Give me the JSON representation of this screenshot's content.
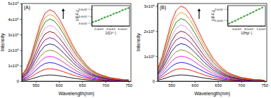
{
  "chart_data": [
    {
      "type": "line",
      "title": "(A)",
      "x_label": "Wavelength(nm)",
      "y_label": "Intensity",
      "x": [
        520,
        530,
        540,
        550,
        560,
        570,
        580,
        590,
        600,
        610,
        620,
        630,
        640,
        650,
        660,
        670,
        680,
        690,
        700,
        710,
        720,
        730,
        740,
        750
      ],
      "xlim": [
        520,
        755
      ],
      "xticks": [
        550,
        600,
        650,
        700,
        750
      ],
      "ylim": [
        0,
        500000
      ],
      "yticks": [
        0,
        {
          "value": 100000,
          "label": "1x10⁵"
        },
        {
          "value": 200000,
          "label": "2x10⁵"
        },
        {
          "value": 300000,
          "label": "3x10⁵"
        },
        {
          "value": 400000,
          "label": "4x10⁵"
        },
        {
          "value": 500000,
          "label": "5x10⁵"
        }
      ],
      "series": [
        {
          "color": "#000000",
          "values": [
            3200,
            7200,
            14000,
            23200,
            32000,
            38000,
            40000,
            38800,
            35200,
            30400,
            25200,
            20000,
            15600,
            12000,
            8800,
            6400,
            4800,
            3600,
            2800,
            2000,
            1600,
            1200,
            800,
            800
          ]
        },
        {
          "color": "#ff0000",
          "values": [
            6400,
            14400,
            28000,
            46400,
            64000,
            76000,
            80000,
            77600,
            70400,
            60800,
            50400,
            40000,
            31200,
            24000,
            17600,
            12800,
            9600,
            7200,
            5600,
            4000,
            3200,
            2400,
            1600,
            1600
          ]
        },
        {
          "color": "#0000ff",
          "values": [
            9600,
            21600,
            42000,
            69600,
            96000,
            114000,
            120000,
            116400,
            105600,
            91200,
            75600,
            60000,
            46800,
            36000,
            26400,
            19200,
            14400,
            10800,
            8400,
            6000,
            4800,
            3600,
            2400,
            2400
          ]
        },
        {
          "color": "#ff00ff",
          "values": [
            12800,
            28800,
            56000,
            92800,
            128000,
            152000,
            160000,
            155200,
            140800,
            121600,
            100800,
            80000,
            62400,
            48000,
            35200,
            25600,
            19200,
            14400,
            11200,
            8000,
            6400,
            4800,
            3200,
            3200
          ]
        },
        {
          "color": "#808000",
          "values": [
            16000,
            36000,
            70000,
            116000,
            160000,
            190000,
            200000,
            194000,
            176000,
            152000,
            126000,
            100000,
            78000,
            60000,
            44000,
            32000,
            24000,
            18000,
            14000,
            10000,
            8000,
            6000,
            4000,
            4000
          ]
        },
        {
          "color": "#000080",
          "values": [
            19200,
            43200,
            84000,
            139200,
            192000,
            228000,
            240000,
            232800,
            211200,
            182400,
            151200,
            120000,
            93600,
            72000,
            52800,
            38400,
            28800,
            21600,
            16800,
            12000,
            9600,
            7200,
            4800,
            4800
          ]
        },
        {
          "color": "#800080",
          "values": [
            22400,
            50400,
            98000,
            162400,
            224000,
            266000,
            280000,
            271600,
            246400,
            212800,
            176400,
            140000,
            109200,
            84000,
            61600,
            44800,
            33600,
            25200,
            19600,
            14000,
            11200,
            8400,
            5600,
            5600
          ]
        },
        {
          "color": "#800000",
          "values": [
            25600,
            57600,
            112000,
            185600,
            256000,
            304000,
            320000,
            310400,
            281600,
            243200,
            201600,
            160000,
            124800,
            96000,
            70400,
            51200,
            38400,
            28800,
            22400,
            16000,
            12800,
            9600,
            6400,
            6400
          ]
        },
        {
          "color": "#ee82ee",
          "values": [
            28800,
            64800,
            126000,
            208800,
            288000,
            342000,
            360000,
            349200,
            316800,
            273600,
            226800,
            180000,
            140400,
            108000,
            79200,
            57600,
            43200,
            32400,
            25200,
            18000,
            14400,
            10800,
            7200,
            7200
          ]
        },
        {
          "color": "#008000",
          "values": [
            32000,
            72000,
            140000,
            232000,
            320000,
            380000,
            400000,
            388000,
            352000,
            304000,
            252000,
            200000,
            156000,
            120000,
            88000,
            64000,
            48000,
            36000,
            28000,
            20000,
            16000,
            12000,
            8000,
            8000
          ]
        },
        {
          "color": "#ff8c00",
          "values": [
            34400,
            77400,
            150500,
            249400,
            344000,
            408500,
            430000,
            417100,
            378400,
            326800,
            270900,
            215000,
            167700,
            129000,
            94600,
            68800,
            51600,
            38700,
            30100,
            21500,
            17200,
            12900,
            8600,
            8600
          ]
        },
        {
          "color": "#ff0000",
          "values": [
            36800,
            82800,
            161000,
            266800,
            368000,
            437000,
            460000,
            446200,
            404800,
            349600,
            289800,
            230000,
            179400,
            138000,
            101200,
            73600,
            55200,
            41400,
            32200,
            23000,
            18400,
            13800,
            9200,
            9200
          ]
        }
      ]
    },
    {
      "type": "scatter",
      "x_label": "1/[Cr³⁺]",
      "y_label": "1/(F-F₀)",
      "xlim": [
        80000,
        720000
      ],
      "xticks": [
        {
          "value": 200000,
          "label": "2.0x10⁵"
        },
        {
          "value": 400000,
          "label": "4.0x10⁵"
        },
        {
          "value": 600000,
          "label": "6.0x10⁵"
        }
      ],
      "ylim": [
        2e-06,
        1.05e-05
      ],
      "yticks": [
        {
          "value": 3e-06,
          "label": "3.0x10⁻⁶"
        },
        {
          "value": 6e-06,
          "label": "6.0x10⁻⁶"
        },
        {
          "value": 9e-06,
          "label": "9.0x10⁻⁶"
        }
      ],
      "series": [
        {
          "type": "scatter",
          "marker": "circle",
          "color": "#2ca02c",
          "x": [
            100000,
            150000,
            200000,
            250000,
            300000,
            350000,
            400000,
            450000,
            500000,
            550000,
            600000,
            650000,
            700000
          ],
          "values": [
            3.6e-06,
            4e-06,
            4.4e-06,
            5e-06,
            5.6e-06,
            6e-06,
            6.4e-06,
            7.1e-06,
            7.5e-06,
            7.9e-06,
            8.6e-06,
            9e-06,
            9.5e-06
          ]
        },
        {
          "type": "line",
          "color": "#2ca02c",
          "x": [
            100000,
            700000
          ],
          "values": [
            3.5e-06,
            9.5e-06
          ]
        }
      ]
    },
    {
      "type": "line",
      "title": "(B)",
      "x_label": "Wavelength(nm)",
      "y_label": "Intensity",
      "x": [
        520,
        530,
        540,
        550,
        560,
        570,
        580,
        590,
        600,
        610,
        620,
        630,
        640,
        650,
        660,
        670,
        680,
        690,
        700,
        710,
        720,
        730,
        740,
        750
      ],
      "xlim": [
        520,
        755
      ],
      "xticks": [
        550,
        600,
        650,
        700,
        750
      ],
      "ylim": [
        0,
        310000
      ],
      "yticks": [
        0,
        {
          "value": 100000,
          "label": "1x10⁵"
        },
        {
          "value": 200000,
          "label": "2x10⁵"
        },
        {
          "value": 300000,
          "label": "3x10⁵"
        }
      ],
      "series": [
        {
          "color": "#000000",
          "values": [
            4000,
            8250,
            14000,
            19750,
            23500,
            25000,
            24250,
            22250,
            19250,
            16000,
            12750,
            10000,
            7500,
            5750,
            4250,
            3000,
            2250,
            1750,
            1250,
            1000,
            750,
            500,
            500,
            250
          ]
        },
        {
          "color": "#ff0000",
          "values": [
            8000,
            16500,
            28000,
            39500,
            47000,
            50000,
            48500,
            44500,
            38500,
            32000,
            25500,
            20000,
            15000,
            11500,
            8500,
            6000,
            4500,
            3500,
            2500,
            2000,
            1500,
            1000,
            1000,
            500
          ]
        },
        {
          "color": "#0000ff",
          "values": [
            12000,
            24750,
            42000,
            59250,
            70500,
            75000,
            72750,
            66750,
            57750,
            48000,
            38250,
            30000,
            22500,
            17250,
            12750,
            9000,
            6750,
            5250,
            3750,
            3000,
            2250,
            1500,
            1500,
            750
          ]
        },
        {
          "color": "#ff00ff",
          "values": [
            16000,
            33000,
            56000,
            79000,
            94000,
            100000,
            97000,
            89000,
            77000,
            64000,
            51000,
            40000,
            30000,
            23000,
            17000,
            12000,
            9000,
            7000,
            5000,
            4000,
            3000,
            2000,
            2000,
            1000
          ]
        },
        {
          "color": "#808000",
          "values": [
            20000,
            41250,
            70000,
            98750,
            117500,
            125000,
            121250,
            111250,
            96250,
            80000,
            63750,
            50000,
            37500,
            28750,
            21250,
            15000,
            11250,
            8750,
            6250,
            5000,
            3750,
            2500,
            2500,
            1250
          ]
        },
        {
          "color": "#000080",
          "values": [
            24000,
            49500,
            84000,
            118500,
            141000,
            150000,
            145500,
            133500,
            115500,
            96000,
            76500,
            60000,
            45000,
            34500,
            25500,
            18000,
            13500,
            10500,
            7500,
            6000,
            4500,
            3000,
            3000,
            1500
          ]
        },
        {
          "color": "#800080",
          "values": [
            28000,
            57750,
            98000,
            138250,
            164500,
            175000,
            169750,
            155750,
            134750,
            112000,
            89250,
            70000,
            52500,
            40250,
            29750,
            21000,
            15750,
            12250,
            8750,
            7000,
            5250,
            3500,
            3500,
            1750
          ]
        },
        {
          "color": "#800000",
          "values": [
            32000,
            66000,
            112000,
            158000,
            188000,
            200000,
            194000,
            178000,
            154000,
            128000,
            102000,
            80000,
            60000,
            46000,
            34000,
            24000,
            18000,
            14000,
            10000,
            8000,
            6000,
            4000,
            4000,
            2000
          ]
        },
        {
          "color": "#ee82ee",
          "values": [
            36000,
            74250,
            126000,
            177750,
            211500,
            225000,
            218250,
            200250,
            173250,
            144000,
            114750,
            90000,
            67500,
            51750,
            38250,
            27000,
            20250,
            15750,
            11250,
            9000,
            6750,
            4500,
            4500,
            2250
          ]
        },
        {
          "color": "#008000",
          "values": [
            40000,
            82500,
            140000,
            197500,
            235000,
            250000,
            242500,
            222500,
            192500,
            160000,
            127500,
            100000,
            75000,
            57500,
            42500,
            30000,
            22500,
            17500,
            12500,
            10000,
            7500,
            5000,
            5000,
            2500
          ]
        },
        {
          "color": "#ff8c00",
          "values": [
            44000,
            90750,
            154000,
            217250,
            258500,
            275000,
            266750,
            244750,
            211750,
            176000,
            140250,
            110000,
            82500,
            63250,
            46750,
            33000,
            24750,
            19250,
            13750,
            11000,
            8250,
            5500,
            5500,
            2750
          ]
        },
        {
          "color": "#ff0000",
          "values": [
            48000,
            99000,
            168000,
            237000,
            282000,
            300000,
            291000,
            267000,
            231000,
            192000,
            153000,
            120000,
            90000,
            69000,
            51000,
            36000,
            27000,
            21000,
            15000,
            12000,
            9000,
            6000,
            6000,
            3000
          ]
        }
      ]
    },
    {
      "type": "scatter",
      "x_label": "1/[Hg²⁺]",
      "y_label": "1/(F-F₀)",
      "xlim": [
        100000,
        1350000
      ],
      "xticks": [
        {
          "value": 400000,
          "label": "4.0x10⁵"
        },
        {
          "value": 800000,
          "label": "8.0x10⁵"
        },
        {
          "value": 1200000,
          "label": "1.2x10⁶"
        }
      ],
      "ylim": [
        5e-06,
        2.3e-05
      ],
      "yticks": [
        {
          "value": 1e-05,
          "label": "1.0x10⁻⁵"
        },
        {
          "value": 2e-05,
          "label": "2.0x10⁻⁵"
        }
      ],
      "series": [
        {
          "type": "scatter",
          "marker": "circle",
          "color": "#2ca02c",
          "x": [
            150000,
            250000,
            350000,
            450000,
            550000,
            650000,
            750000,
            850000,
            950000,
            1050000,
            1150000,
            1250000
          ],
          "values": [
            7e-06,
            8.4e-06,
            9.5e-06,
            1.1e-05,
            1.21e-05,
            1.36e-05,
            1.47e-05,
            1.62e-05,
            1.73e-05,
            1.88e-05,
            2e-05,
            2.12e-05
          ]
        },
        {
          "type": "line",
          "color": "#2ca02c",
          "x": [
            150000,
            1250000
          ],
          "values": [
            7e-06,
            2.13e-05
          ]
        }
      ]
    }
  ]
}
